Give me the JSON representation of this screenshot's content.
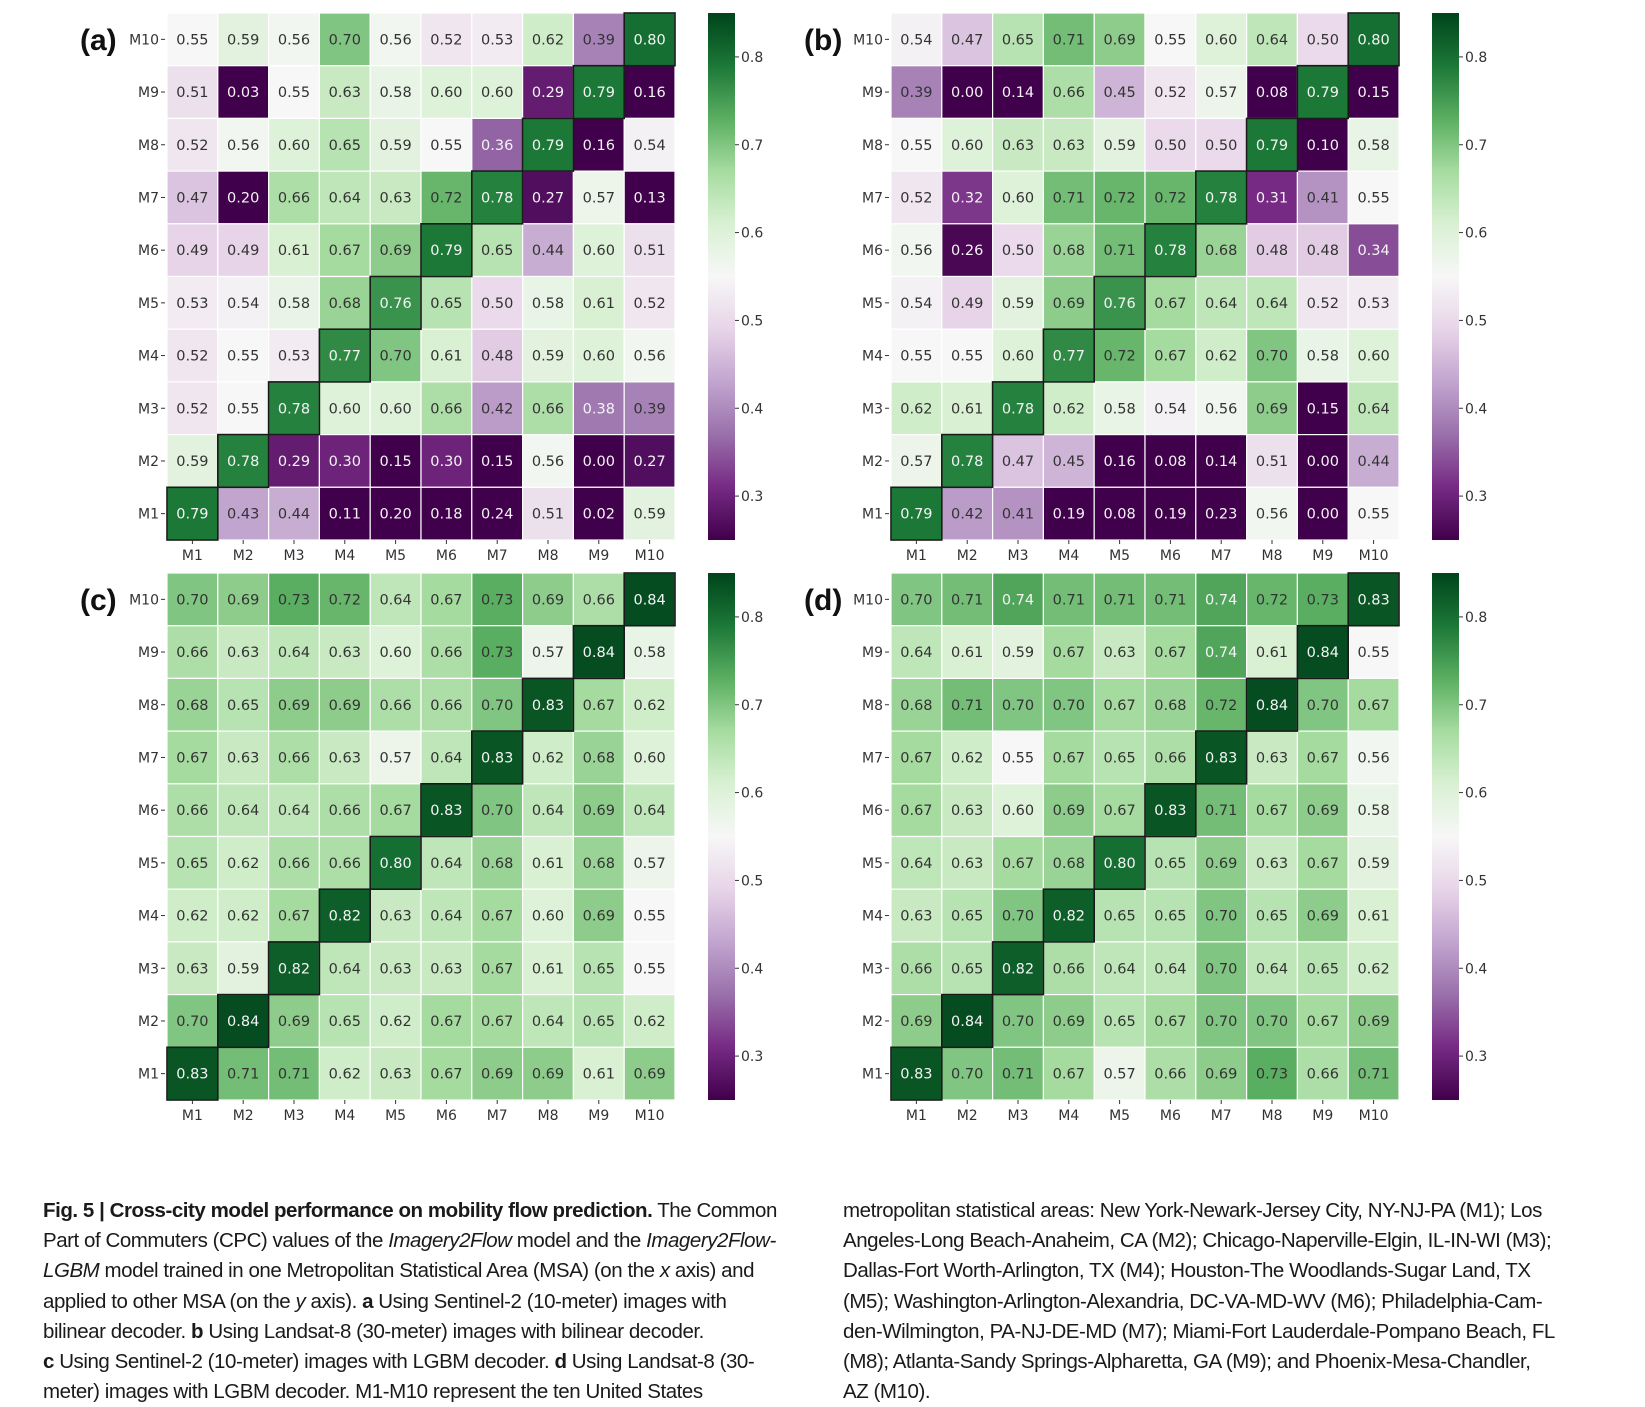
{
  "chart_data": [
    {
      "type": "heatmap",
      "panel_label": "(a)",
      "title": "",
      "xlabel": "",
      "ylabel": "",
      "x_categories": [
        "M1",
        "M2",
        "M3",
        "M4",
        "M5",
        "M6",
        "M7",
        "M8",
        "M9",
        "M10"
      ],
      "y_categories_top_to_bottom": [
        "M10",
        "M9",
        "M8",
        "M7",
        "M6",
        "M5",
        "M4",
        "M3",
        "M2",
        "M1"
      ],
      "values_top_to_bottom": [
        [
          0.55,
          0.59,
          0.56,
          0.7,
          0.56,
          0.52,
          0.53,
          0.62,
          0.39,
          0.8
        ],
        [
          0.51,
          0.03,
          0.55,
          0.63,
          0.58,
          0.6,
          0.6,
          0.29,
          0.79,
          0.16
        ],
        [
          0.52,
          0.56,
          0.6,
          0.65,
          0.59,
          0.55,
          0.36,
          0.79,
          0.16,
          0.54
        ],
        [
          0.47,
          0.2,
          0.66,
          0.64,
          0.63,
          0.72,
          0.78,
          0.27,
          0.57,
          0.13
        ],
        [
          0.49,
          0.49,
          0.61,
          0.67,
          0.69,
          0.79,
          0.65,
          0.44,
          0.6,
          0.51
        ],
        [
          0.53,
          0.54,
          0.58,
          0.68,
          0.76,
          0.65,
          0.5,
          0.58,
          0.61,
          0.52
        ],
        [
          0.52,
          0.55,
          0.53,
          0.77,
          0.7,
          0.61,
          0.48,
          0.59,
          0.6,
          0.56
        ],
        [
          0.52,
          0.55,
          0.78,
          0.6,
          0.6,
          0.66,
          0.42,
          0.66,
          0.38,
          0.39
        ],
        [
          0.59,
          0.78,
          0.29,
          0.3,
          0.15,
          0.3,
          0.15,
          0.56,
          0.0,
          0.27
        ],
        [
          0.79,
          0.43,
          0.44,
          0.11,
          0.2,
          0.18,
          0.24,
          0.51,
          0.02,
          0.59
        ]
      ],
      "colorbar": {
        "range": [
          0.25,
          0.85
        ],
        "ticks": [
          "0.8",
          "0.7",
          "0.6",
          "0.5",
          "0.4",
          "0.3"
        ],
        "tick_values": [
          0.8,
          0.7,
          0.6,
          0.5,
          0.4,
          0.3
        ],
        "colormap": "PRGn"
      },
      "show_x_tick_labels": true,
      "diagonal_highlighted": true
    },
    {
      "type": "heatmap",
      "panel_label": "(b)",
      "title": "",
      "xlabel": "",
      "ylabel": "",
      "x_categories": [
        "M1",
        "M2",
        "M3",
        "M4",
        "M5",
        "M6",
        "M7",
        "M8",
        "M9",
        "M10"
      ],
      "y_categories_top_to_bottom": [
        "M10",
        "M9",
        "M8",
        "M7",
        "M6",
        "M5",
        "M4",
        "M3",
        "M2",
        "M1"
      ],
      "values_top_to_bottom": [
        [
          0.54,
          0.47,
          0.65,
          0.71,
          0.69,
          0.55,
          0.6,
          0.64,
          0.5,
          0.8
        ],
        [
          0.39,
          0.0,
          0.14,
          0.66,
          0.45,
          0.52,
          0.57,
          0.08,
          0.79,
          0.15
        ],
        [
          0.55,
          0.6,
          0.63,
          0.63,
          0.59,
          0.5,
          0.5,
          0.79,
          0.1,
          0.58
        ],
        [
          0.52,
          0.32,
          0.6,
          0.71,
          0.72,
          0.72,
          0.78,
          0.31,
          0.41,
          0.55
        ],
        [
          0.56,
          0.26,
          0.5,
          0.68,
          0.71,
          0.78,
          0.68,
          0.48,
          0.48,
          0.34
        ],
        [
          0.54,
          0.49,
          0.59,
          0.69,
          0.76,
          0.67,
          0.64,
          0.64,
          0.52,
          0.53
        ],
        [
          0.55,
          0.55,
          0.6,
          0.77,
          0.72,
          0.67,
          0.62,
          0.7,
          0.58,
          0.6
        ],
        [
          0.62,
          0.61,
          0.78,
          0.62,
          0.58,
          0.54,
          0.56,
          0.69,
          0.15,
          0.64
        ],
        [
          0.57,
          0.78,
          0.47,
          0.45,
          0.16,
          0.08,
          0.14,
          0.51,
          0.0,
          0.44
        ],
        [
          0.79,
          0.42,
          0.41,
          0.19,
          0.08,
          0.19,
          0.23,
          0.56,
          0.0,
          0.55
        ]
      ],
      "colorbar": {
        "range": [
          0.25,
          0.85
        ],
        "ticks": [
          "0.8",
          "0.7",
          "0.6",
          "0.5",
          "0.4",
          "0.3"
        ],
        "tick_values": [
          0.8,
          0.7,
          0.6,
          0.5,
          0.4,
          0.3
        ],
        "colormap": "PRGn"
      },
      "show_x_tick_labels": true,
      "diagonal_highlighted": true
    },
    {
      "type": "heatmap",
      "panel_label": "(c)",
      "title": "",
      "xlabel": "",
      "ylabel": "",
      "x_categories": [
        "M1",
        "M2",
        "M3",
        "M4",
        "M5",
        "M6",
        "M7",
        "M8",
        "M9",
        "M10"
      ],
      "y_categories_top_to_bottom": [
        "M10",
        "M9",
        "M8",
        "M7",
        "M6",
        "M5",
        "M4",
        "M3",
        "M2",
        "M1"
      ],
      "values_top_to_bottom": [
        [
          0.7,
          0.69,
          0.73,
          0.72,
          0.64,
          0.67,
          0.73,
          0.69,
          0.66,
          0.84
        ],
        [
          0.66,
          0.63,
          0.64,
          0.63,
          0.6,
          0.66,
          0.73,
          0.57,
          0.84,
          0.58
        ],
        [
          0.68,
          0.65,
          0.69,
          0.69,
          0.66,
          0.66,
          0.7,
          0.83,
          0.67,
          0.62
        ],
        [
          0.67,
          0.63,
          0.66,
          0.63,
          0.57,
          0.64,
          0.83,
          0.62,
          0.68,
          0.6
        ],
        [
          0.66,
          0.64,
          0.64,
          0.66,
          0.67,
          0.83,
          0.7,
          0.64,
          0.69,
          0.64
        ],
        [
          0.65,
          0.62,
          0.66,
          0.66,
          0.8,
          0.64,
          0.68,
          0.61,
          0.68,
          0.57
        ],
        [
          0.62,
          0.62,
          0.67,
          0.82,
          0.63,
          0.64,
          0.67,
          0.6,
          0.69,
          0.55
        ],
        [
          0.63,
          0.59,
          0.82,
          0.64,
          0.63,
          0.63,
          0.67,
          0.61,
          0.65,
          0.55
        ],
        [
          0.7,
          0.84,
          0.69,
          0.65,
          0.62,
          0.67,
          0.67,
          0.64,
          0.65,
          0.62
        ],
        [
          0.83,
          0.71,
          0.71,
          0.62,
          0.63,
          0.67,
          0.69,
          0.69,
          0.61,
          0.69
        ]
      ],
      "colorbar": {
        "range": [
          0.25,
          0.85
        ],
        "ticks": [
          "0.8",
          "0.7",
          "0.6",
          "0.5",
          "0.4",
          "0.3"
        ],
        "tick_values": [
          0.8,
          0.7,
          0.6,
          0.5,
          0.4,
          0.3
        ],
        "colormap": "PRGn"
      },
      "show_x_tick_labels": true,
      "diagonal_highlighted": true
    },
    {
      "type": "heatmap",
      "panel_label": "(d)",
      "title": "",
      "xlabel": "",
      "ylabel": "",
      "x_categories": [
        "M1",
        "M2",
        "M3",
        "M4",
        "M5",
        "M6",
        "M7",
        "M8",
        "M9",
        "M10"
      ],
      "y_categories_top_to_bottom": [
        "M10",
        "M9",
        "M8",
        "M7",
        "M6",
        "M5",
        "M4",
        "M3",
        "M2",
        "M1"
      ],
      "values_top_to_bottom": [
        [
          0.7,
          0.71,
          0.74,
          0.71,
          0.71,
          0.71,
          0.74,
          0.72,
          0.73,
          0.83
        ],
        [
          0.64,
          0.61,
          0.59,
          0.67,
          0.63,
          0.67,
          0.74,
          0.61,
          0.84,
          0.55
        ],
        [
          0.68,
          0.71,
          0.7,
          0.7,
          0.67,
          0.68,
          0.72,
          0.84,
          0.7,
          0.67
        ],
        [
          0.67,
          0.62,
          0.55,
          0.67,
          0.65,
          0.66,
          0.83,
          0.63,
          0.67,
          0.56
        ],
        [
          0.67,
          0.63,
          0.6,
          0.69,
          0.67,
          0.83,
          0.71,
          0.67,
          0.69,
          0.58
        ],
        [
          0.64,
          0.63,
          0.67,
          0.68,
          0.8,
          0.65,
          0.69,
          0.63,
          0.67,
          0.59
        ],
        [
          0.63,
          0.65,
          0.7,
          0.82,
          0.65,
          0.65,
          0.7,
          0.65,
          0.69,
          0.61
        ],
        [
          0.66,
          0.65,
          0.82,
          0.66,
          0.64,
          0.64,
          0.7,
          0.64,
          0.65,
          0.62
        ],
        [
          0.69,
          0.84,
          0.7,
          0.69,
          0.65,
          0.67,
          0.7,
          0.7,
          0.67,
          0.69
        ],
        [
          0.83,
          0.7,
          0.71,
          0.67,
          0.57,
          0.66,
          0.69,
          0.73,
          0.66,
          0.71
        ]
      ],
      "colorbar": {
        "range": [
          0.25,
          0.85
        ],
        "ticks": [
          "0.8",
          "0.7",
          "0.6",
          "0.5",
          "0.4",
          "0.3"
        ],
        "tick_values": [
          0.8,
          0.7,
          0.6,
          0.5,
          0.4,
          0.3
        ],
        "colormap": "PRGn"
      },
      "show_x_tick_labels": true,
      "diagonal_highlighted": true
    }
  ],
  "caption": {
    "left_lines": [
      [
        {
          "t": "Fig. 5 | Cross-city model performance on mobility flow prediction.",
          "s": "b"
        },
        {
          "t": " The Common",
          "s": ""
        }
      ],
      [
        {
          "t": "Part of Commuters (CPC) values of the ",
          "s": ""
        },
        {
          "t": "Imagery2Flow",
          "s": "i"
        },
        {
          "t": " model and the ",
          "s": ""
        },
        {
          "t": "Imagery2Flow-",
          "s": "i"
        }
      ],
      [
        {
          "t": "LGBM",
          "s": "i"
        },
        {
          "t": " model trained in one Metropolitan Statistical Area (MSA) (on the ",
          "s": ""
        },
        {
          "t": "x",
          "s": "i"
        },
        {
          "t": " axis) and",
          "s": ""
        }
      ],
      [
        {
          "t": "applied to other MSA (on the ",
          "s": ""
        },
        {
          "t": "y",
          "s": "i"
        },
        {
          "t": " axis). ",
          "s": ""
        },
        {
          "t": "a",
          "s": "b"
        },
        {
          "t": " Using Sentinel-2 (10-meter) images with",
          "s": ""
        }
      ],
      [
        {
          "t": "bilinear decoder. ",
          "s": ""
        },
        {
          "t": "b",
          "s": "b"
        },
        {
          "t": " Using Landsat-8 (30-meter) images with bilinear decoder.",
          "s": ""
        }
      ],
      [
        {
          "t": "c",
          "s": "b"
        },
        {
          "t": " Using Sentinel-2 (10-meter) images with LGBM decoder. ",
          "s": ""
        },
        {
          "t": "d",
          "s": "b"
        },
        {
          "t": " Using Landsat-8 (30-",
          "s": ""
        }
      ],
      [
        {
          "t": "meter) images with LGBM decoder. M1-M10 represent the ten United States",
          "s": ""
        }
      ]
    ],
    "right_lines": [
      [
        {
          "t": "metropolitan statistical areas: New York-Newark-Jersey City, NY-NJ-PA (M1); Los",
          "s": ""
        }
      ],
      [
        {
          "t": "Angeles-Long Beach-Anaheim, CA (M2); Chicago-Naperville-Elgin, IL-IN-WI (M3);",
          "s": ""
        }
      ],
      [
        {
          "t": "Dallas-Fort Worth-Arlington, TX (M4); Houston-The Woodlands-Sugar Land, TX",
          "s": ""
        }
      ],
      [
        {
          "t": "(M5); Washington-Arlington-Alexandria, DC-VA-MD-WV (M6); Philadelphia-Cam-",
          "s": ""
        }
      ],
      [
        {
          "t": "den-Wilmington, PA-NJ-DE-MD (M7); Miami-Fort Lauderdale-Pompano Beach, FL",
          "s": ""
        }
      ],
      [
        {
          "t": "(M8); Atlanta-Sandy Springs-Alpharetta, GA (M9); and Phoenix-Mesa-Chandler,",
          "s": ""
        }
      ],
      [
        {
          "t": "AZ (M10).",
          "s": ""
        }
      ]
    ]
  }
}
